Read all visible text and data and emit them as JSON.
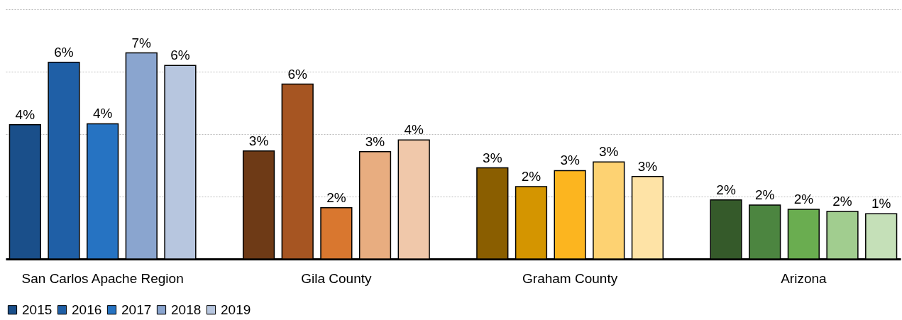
{
  "chart_data": {
    "type": "bar",
    "categories": [
      "San Carlos Apache Region",
      "Gila County",
      "Graham County",
      "Arizona"
    ],
    "series": [
      {
        "name": "2015",
        "color": "#1a4f8a",
        "colors": [
          "#1a4f8a",
          "#6e3a16",
          "#8a5e00",
          "#355a2a"
        ],
        "values": [
          4.3,
          3.46,
          2.92,
          1.89
        ],
        "value_labels": [
          "4%",
          "3%",
          "3%",
          "2%"
        ]
      },
      {
        "name": "2016",
        "color": "#1f5fa6",
        "colors": [
          "#1f5fa6",
          "#a65522",
          "#d49500",
          "#4c8540"
        ],
        "values": [
          6.3,
          5.6,
          2.32,
          1.73
        ],
        "value_labels": [
          "6%",
          "6%",
          "2%",
          "2%"
        ]
      },
      {
        "name": "2017",
        "color": "#2673c2",
        "colors": [
          "#2673c2",
          "#d9772f",
          "#fcb51f",
          "#6aad50"
        ],
        "values": [
          4.33,
          1.64,
          2.83,
          1.59
        ],
        "value_labels": [
          "4%",
          "2%",
          "3%",
          "2%"
        ]
      },
      {
        "name": "2018",
        "color": "#8aa5cf",
        "colors": [
          "#8aa5cf",
          "#e8ad80",
          "#fdd272",
          "#a1cd8f"
        ],
        "values": [
          6.6,
          3.44,
          3.11,
          1.52
        ],
        "value_labels": [
          "7%",
          "3%",
          "3%",
          "2%"
        ]
      },
      {
        "name": "2019",
        "color": "#b7c6df",
        "colors": [
          "#b7c6df",
          "#f0c8aa",
          "#fee3a6",
          "#c5e0b8"
        ],
        "values": [
          6.2,
          3.81,
          2.64,
          1.45
        ],
        "value_labels": [
          "6%",
          "4%",
          "3%",
          "1%"
        ]
      }
    ],
    "ylim": [
      0,
      8
    ],
    "yticks": [
      {
        "value": 0,
        "label": null
      },
      {
        "value": 2,
        "label": null
      },
      {
        "value": 4,
        "label": null
      },
      {
        "value": 6,
        "label": null
      },
      {
        "value": 8,
        "label": null
      }
    ],
    "grid": "y",
    "tick_labels": "x",
    "legend": "bottom left"
  }
}
